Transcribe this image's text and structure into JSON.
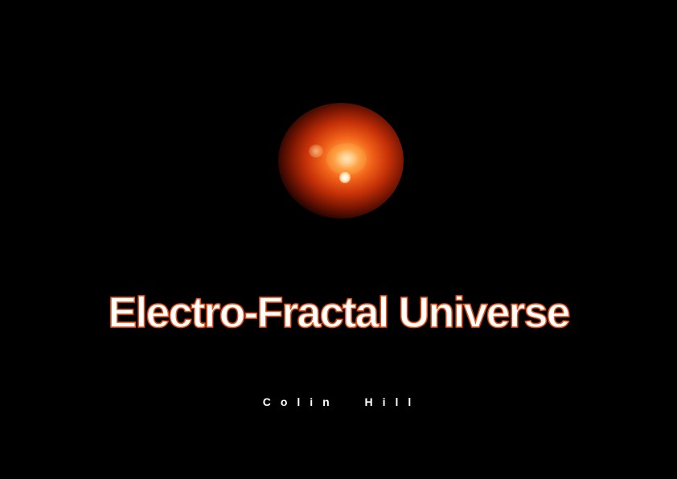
{
  "cover": {
    "title": "Electro-Fractal Universe",
    "author": "Colin  Hill"
  },
  "colors": {
    "background": "#000000",
    "title_fill": "#ffffff",
    "title_outline": "#e0551e",
    "nebula_core": "#ffd9a0",
    "nebula_outer": "#c83208"
  }
}
